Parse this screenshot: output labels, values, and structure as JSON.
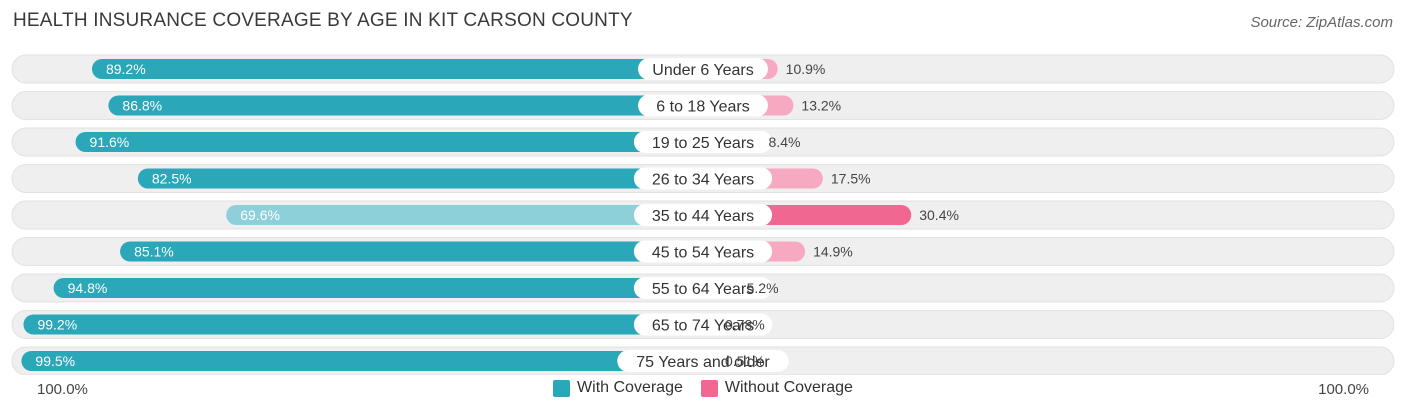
{
  "title": "HEALTH INSURANCE COVERAGE BY AGE IN KIT CARSON COUNTY",
  "source": "Source: ZipAtlas.com",
  "colors": {
    "with_strong": "#2aa7b8",
    "with_light": "#8dd0da",
    "without_strong": "#f06892",
    "without_light": "#f7a9c2",
    "track": "#efefef"
  },
  "legend": {
    "with_label": "With Coverage",
    "without_label": "Without Coverage"
  },
  "axis": {
    "left_label": "100.0%",
    "right_label": "100.0%"
  },
  "chart_data": {
    "type": "bar",
    "orientation": "horizontal-diverging",
    "title": "HEALTH INSURANCE COVERAGE BY AGE IN KIT CARSON COUNTY",
    "categories": [
      "Under 6 Years",
      "6 to 18 Years",
      "19 to 25 Years",
      "26 to 34 Years",
      "35 to 44 Years",
      "45 to 54 Years",
      "55 to 64 Years",
      "65 to 74 Years",
      "75 Years and older"
    ],
    "series": [
      {
        "name": "With Coverage",
        "values": [
          89.2,
          86.8,
          91.6,
          82.5,
          69.6,
          85.1,
          94.8,
          99.2,
          99.5
        ],
        "labels": [
          "89.2%",
          "86.8%",
          "91.6%",
          "82.5%",
          "69.6%",
          "85.1%",
          "94.8%",
          "99.2%",
          "99.5%"
        ]
      },
      {
        "name": "Without Coverage",
        "values": [
          10.9,
          13.2,
          8.4,
          17.5,
          30.4,
          14.9,
          5.2,
          0.78,
          0.51
        ],
        "labels": [
          "10.9%",
          "13.2%",
          "8.4%",
          "17.5%",
          "30.4%",
          "14.9%",
          "5.2%",
          "0.78%",
          "0.51%"
        ]
      }
    ],
    "xlim": [
      -100,
      100
    ],
    "legend_position": "bottom-center"
  }
}
